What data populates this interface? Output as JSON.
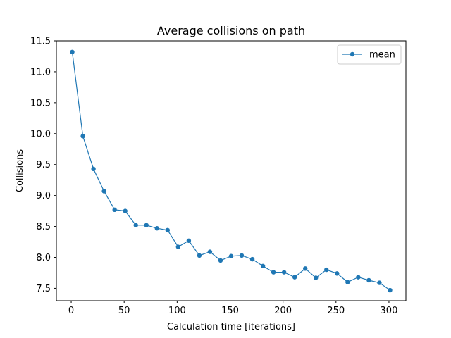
{
  "chart_data": {
    "type": "line",
    "title": "Average collisions on path",
    "xlabel": "Calculation time [iterations]",
    "ylabel": "Collisions",
    "xlim": [
      -14,
      316
    ],
    "ylim": [
      7.3,
      11.5
    ],
    "xticks": [
      0,
      50,
      100,
      150,
      200,
      250,
      300
    ],
    "yticks": [
      7.5,
      8.0,
      8.5,
      9.0,
      9.5,
      10.0,
      10.5,
      11.0,
      11.5
    ],
    "grid": false,
    "legend_position": "top-right",
    "series": [
      {
        "name": "mean",
        "color": "#1f77b4",
        "marker": "circle",
        "x": [
          1,
          11,
          21,
          31,
          41,
          51,
          61,
          71,
          81,
          91,
          101,
          111,
          121,
          131,
          141,
          151,
          161,
          171,
          181,
          191,
          201,
          211,
          221,
          231,
          241,
          251,
          261,
          271,
          281,
          291,
          301
        ],
        "y": [
          11.32,
          9.96,
          9.43,
          9.07,
          8.77,
          8.75,
          8.52,
          8.52,
          8.47,
          8.44,
          8.17,
          8.27,
          8.03,
          8.09,
          7.95,
          8.02,
          8.03,
          7.97,
          7.86,
          7.76,
          7.76,
          7.68,
          7.82,
          7.67,
          7.8,
          7.74,
          7.6,
          7.68,
          7.63,
          7.59,
          7.47
        ]
      }
    ]
  }
}
